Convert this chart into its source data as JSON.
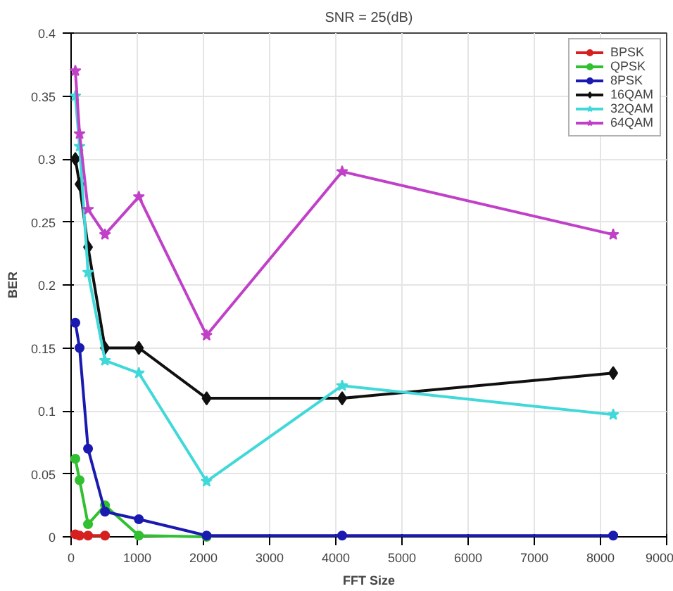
{
  "chart_data": {
    "type": "line",
    "title": "SNR = 25(dB)",
    "xlabel": "FFT Size",
    "ylabel": "BER",
    "x": [
      64,
      128,
      256,
      512,
      1024,
      2048,
      4096,
      8192
    ],
    "xlim": [
      0,
      9000
    ],
    "xticks": [
      0,
      1000,
      2000,
      3000,
      4000,
      5000,
      6000,
      7000,
      8000,
      9000
    ],
    "ylim": [
      0,
      0.4
    ],
    "yticks": [
      0,
      0.05,
      0.1,
      0.15,
      0.2,
      0.25,
      0.3,
      0.35,
      0.4
    ],
    "grid": true,
    "legend": "top right",
    "line_style": "solid",
    "series": [
      {
        "name": "BPSK",
        "color": "#d62020",
        "marker": "circle",
        "values": [
          0.002,
          0.001,
          0.001,
          0.001,
          null,
          null,
          null,
          null
        ]
      },
      {
        "name": "QPSK",
        "color": "#30c030",
        "marker": "circle",
        "values": [
          0.062,
          0.045,
          0.01,
          0.025,
          0.001,
          0.0,
          null,
          null
        ]
      },
      {
        "name": "8PSK",
        "color": "#1a1ab0",
        "marker": "circle",
        "values": [
          0.17,
          0.15,
          0.07,
          0.02,
          0.014,
          0.001,
          0.001,
          0.001
        ]
      },
      {
        "name": "16QAM",
        "color": "#101010",
        "marker": "diamond",
        "values": [
          0.3,
          0.28,
          0.23,
          0.15,
          0.15,
          0.11,
          0.11,
          0.13
        ]
      },
      {
        "name": "32QAM",
        "color": "#40d8d8",
        "marker": "star",
        "values": [
          0.35,
          0.31,
          0.21,
          0.14,
          0.13,
          0.044,
          0.12,
          0.097
        ]
      },
      {
        "name": "64QAM",
        "color": "#c040c8",
        "marker": "star",
        "values": [
          0.37,
          0.32,
          0.26,
          0.24,
          0.27,
          0.16,
          0.29,
          0.24
        ]
      }
    ]
  }
}
